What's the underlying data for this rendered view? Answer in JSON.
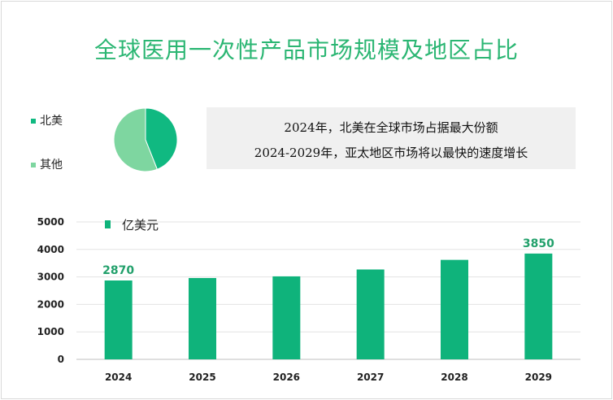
{
  "title": "全球医用一次性产品市场规模及地区占比",
  "info": {
    "line1": "2024年，北美在全球市场占据最大份额",
    "line2": "2024-2029年，亚太地区市场将以最快的速度增长"
  },
  "colors": {
    "title": "#2bb673",
    "bar": "#0fb37b",
    "pie_north_america": "#10b981",
    "pie_other": "#7ed6a0",
    "label": "#22a06b"
  },
  "chart_data": [
    {
      "type": "pie",
      "slices": [
        {
          "label": "北美",
          "value": 44
        },
        {
          "label": "其他",
          "value": 56
        }
      ],
      "legend_position": "left"
    },
    {
      "type": "bar",
      "categories": [
        "2024",
        "2025",
        "2026",
        "2027",
        "2028",
        "2029"
      ],
      "series": [
        {
          "name": "亿美元",
          "values": [
            2870,
            2960,
            3020,
            3270,
            3620,
            3850
          ]
        }
      ],
      "data_labels": [
        {
          "category": "2024",
          "text": "2870"
        },
        {
          "category": "2029",
          "text": "3850"
        }
      ],
      "ylim": [
        0,
        5000
      ],
      "yticks": [
        "0",
        "1000",
        "2000",
        "3000",
        "4000",
        "5000"
      ],
      "grid": true,
      "legend_position": "top-left"
    }
  ]
}
